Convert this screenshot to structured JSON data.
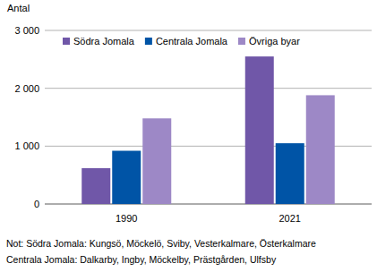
{
  "chart_data": {
    "type": "bar",
    "y_label": "Antal",
    "categories": [
      "1990",
      "2021"
    ],
    "series": [
      {
        "name": "Södra Jomala",
        "color": "#7057a8",
        "values": [
          620,
          2550
        ]
      },
      {
        "name": "Centrala Jomala",
        "color": "#0054a6",
        "values": [
          920,
          1050
        ]
      },
      {
        "name": "Övriga byar",
        "color": "#9d88c6",
        "values": [
          1480,
          1880
        ]
      }
    ],
    "ylim": [
      0,
      3000
    ],
    "yticks": [
      0,
      {
        "value": 1000,
        "label": "1 000"
      },
      {
        "value": 2000,
        "label": "2 000"
      },
      {
        "value": 3000,
        "label": "3 000"
      }
    ],
    "grid": true,
    "legend": "top",
    "notes": [
      "Not: Södra Jomala: Kungsö, Möckelö, Sviby, Vesterkalmare, Österkalmare",
      "Centrala Jomala: Dalkarby, Ingby, Möckelby, Prästgården, Ulfsby"
    ]
  }
}
